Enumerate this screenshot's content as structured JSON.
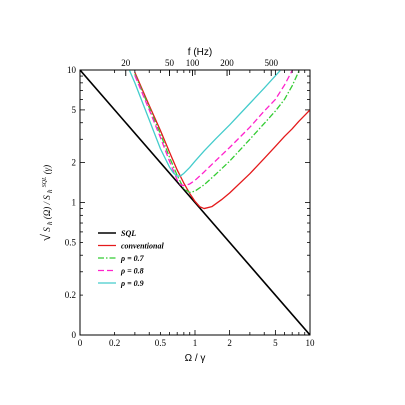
{
  "chart_data": {
    "type": "line",
    "title": "",
    "xlabel": "Ω / γ",
    "top_xlabel": "f (Hz)",
    "ylabel_parts": [
      "√",
      "S",
      "h",
      "(Ω) / S",
      "h",
      "SQL",
      "(γ)"
    ],
    "x_scale": "log",
    "y_scale": "log",
    "xlim": [
      0.1,
      10
    ],
    "ylim": [
      0.1,
      10
    ],
    "x_ticks": [
      {
        "value": 0.1,
        "label": "0"
      },
      {
        "value": 0.2,
        "label": "0.2"
      },
      {
        "value": 0.5,
        "label": "0.5"
      },
      {
        "value": 1,
        "label": "1"
      },
      {
        "value": 2,
        "label": "2"
      },
      {
        "value": 5,
        "label": "5"
      },
      {
        "value": 10,
        "label": "10"
      }
    ],
    "y_ticks": [
      {
        "value": 0.1,
        "label": "0"
      },
      {
        "value": 0.2,
        "label": "0.2"
      },
      {
        "value": 0.5,
        "label": "0.5"
      },
      {
        "value": 1,
        "label": "1"
      },
      {
        "value": 2,
        "label": "2"
      },
      {
        "value": 5,
        "label": "5"
      },
      {
        "value": 10,
        "label": "10"
      }
    ],
    "top_ticks": [
      {
        "value": 0.25,
        "label": "20"
      },
      {
        "value": 0.6,
        "label": "50"
      },
      {
        "value": 0.95,
        "label": "100"
      },
      {
        "value": 1.9,
        "label": "200"
      },
      {
        "value": 4.6,
        "label": "500"
      }
    ],
    "grid": false,
    "legend_position": "left-middle",
    "series": [
      {
        "name": "SQL",
        "color": "#000000",
        "dash": "solid",
        "x": [
          0.1,
          10
        ],
        "y": [
          10,
          0.1
        ]
      },
      {
        "name": "conventional",
        "color": "#e41a1c",
        "dash": "solid",
        "x": [
          0.3,
          0.4,
          0.5,
          0.6,
          0.7,
          0.8,
          0.9,
          1.0,
          1.1,
          1.2,
          1.4,
          1.7,
          2,
          3,
          4,
          5,
          6,
          7,
          8,
          9,
          10
        ],
        "y": [
          9.6,
          5.4,
          3.5,
          2.4,
          1.76,
          1.4,
          1.17,
          1.02,
          0.93,
          0.9,
          0.93,
          1.05,
          1.18,
          1.65,
          2.15,
          2.65,
          3.15,
          3.6,
          4.1,
          4.55,
          5.0
        ]
      },
      {
        "name": "ρ = 0.7",
        "color": "#33cc33",
        "dash": "dashdot",
        "x": [
          0.3,
          0.4,
          0.5,
          0.6,
          0.7,
          0.8,
          0.9,
          1.0,
          1.2,
          1.5,
          2,
          3,
          4,
          5,
          6,
          7,
          8
        ],
        "y": [
          9.3,
          5.2,
          3.3,
          2.2,
          1.6,
          1.27,
          1.19,
          1.22,
          1.36,
          1.62,
          2.05,
          3.0,
          3.95,
          4.9,
          6.0,
          7.6,
          9.8
        ]
      },
      {
        "name": "ρ = 0.8",
        "color": "#ff22cc",
        "dash": "dashed",
        "x": [
          0.3,
          0.4,
          0.5,
          0.6,
          0.7,
          0.75,
          0.8,
          0.9,
          1.0,
          1.2,
          1.5,
          2,
          3,
          4,
          5,
          6,
          7
        ],
        "y": [
          9.1,
          5.0,
          3.1,
          2.05,
          1.48,
          1.36,
          1.34,
          1.38,
          1.47,
          1.7,
          2.05,
          2.6,
          3.7,
          4.9,
          6.0,
          7.7,
          9.9
        ]
      },
      {
        "name": "ρ = 0.9",
        "color": "#44cccc",
        "dash": "solid",
        "x": [
          0.27,
          0.3,
          0.4,
          0.5,
          0.6,
          0.65,
          0.7,
          0.75,
          0.8,
          0.9,
          1.0,
          1.2,
          1.5,
          2,
          3,
          4,
          5.5
        ],
        "y": [
          9.9,
          8.0,
          4.2,
          2.55,
          1.85,
          1.67,
          1.58,
          1.59,
          1.66,
          1.84,
          2.05,
          2.45,
          3.0,
          3.85,
          5.6,
          7.3,
          9.9
        ]
      }
    ]
  }
}
